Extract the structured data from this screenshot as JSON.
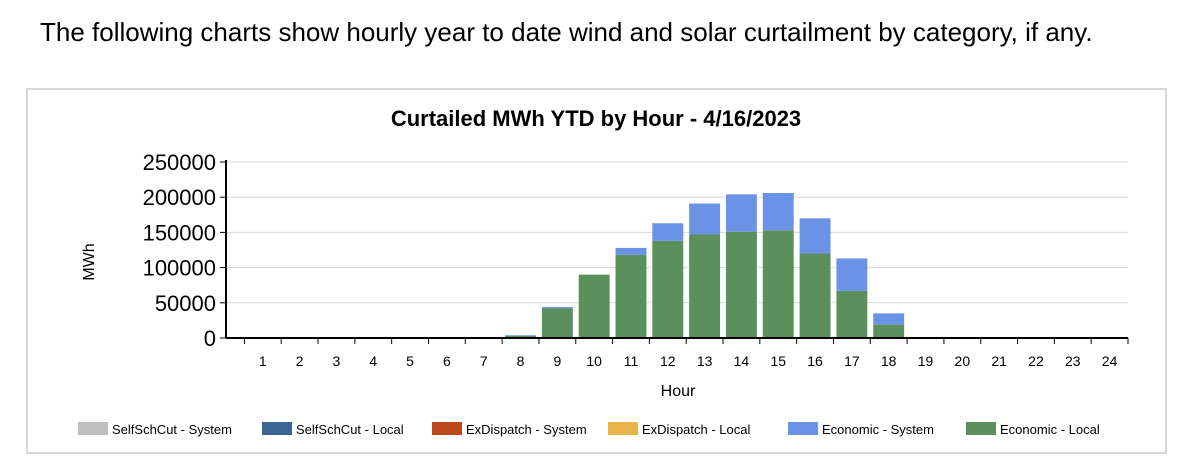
{
  "intro_text": "The following charts show hourly year to date wind and solar curtailment by category, if any.",
  "chart_data": {
    "type": "bar",
    "stacked": true,
    "title": "Curtailed MWh YTD  by Hour - 4/16/2023",
    "xlabel": "Hour",
    "ylabel": "MWh",
    "ylim": [
      0,
      250000
    ],
    "yticks": [
      0,
      50000,
      100000,
      150000,
      200000,
      250000
    ],
    "grid": true,
    "legend_position": "bottom",
    "categories": [
      "1",
      "2",
      "3",
      "4",
      "5",
      "6",
      "7",
      "8",
      "9",
      "10",
      "11",
      "12",
      "13",
      "14",
      "15",
      "16",
      "17",
      "18",
      "19",
      "20",
      "21",
      "22",
      "23",
      "24"
    ],
    "series": [
      {
        "name": "SelfSchCut - System",
        "color": "#bfbfbf",
        "values": [
          0,
          0,
          0,
          0,
          0,
          0,
          0,
          0,
          0,
          0,
          0,
          0,
          0,
          0,
          0,
          0,
          0,
          0,
          0,
          0,
          0,
          0,
          0,
          0
        ]
      },
      {
        "name": "SelfSchCut - Local",
        "color": "#3a6594",
        "values": [
          0,
          0,
          0,
          0,
          0,
          0,
          0,
          0,
          0,
          0,
          0,
          0,
          0,
          0,
          0,
          0,
          0,
          0,
          0,
          0,
          0,
          0,
          0,
          0
        ]
      },
      {
        "name": "ExDispatch - System",
        "color": "#c0461c",
        "values": [
          0,
          0,
          0,
          0,
          0,
          0,
          0,
          0,
          0,
          0,
          0,
          0,
          0,
          0,
          0,
          0,
          0,
          0,
          0,
          0,
          0,
          0,
          0,
          0
        ]
      },
      {
        "name": "ExDispatch - Local",
        "color": "#e8b44a",
        "values": [
          0,
          0,
          0,
          0,
          0,
          0,
          0,
          0,
          0,
          0,
          0,
          0,
          0,
          0,
          0,
          0,
          0,
          0,
          0,
          0,
          0,
          0,
          0,
          0
        ]
      },
      {
        "name": "Economic - Local",
        "color": "#5b8f5b",
        "values": [
          0,
          0,
          0,
          0,
          0,
          0,
          0,
          3000,
          42000,
          90000,
          118000,
          138000,
          147000,
          151000,
          153000,
          120000,
          67000,
          19000,
          0,
          0,
          0,
          0,
          0,
          0
        ]
      },
      {
        "name": "Economic - System",
        "color": "#6a93e6",
        "values": [
          0,
          0,
          0,
          0,
          0,
          0,
          0,
          1000,
          2000,
          0,
          10000,
          25000,
          44000,
          53000,
          53000,
          50000,
          46000,
          16000,
          0,
          0,
          0,
          0,
          0,
          0
        ]
      }
    ],
    "legend_order": [
      "SelfSchCut - System",
      "SelfSchCut - Local",
      "ExDispatch - System",
      "ExDispatch - Local",
      "Economic - System",
      "Economic - Local"
    ]
  }
}
